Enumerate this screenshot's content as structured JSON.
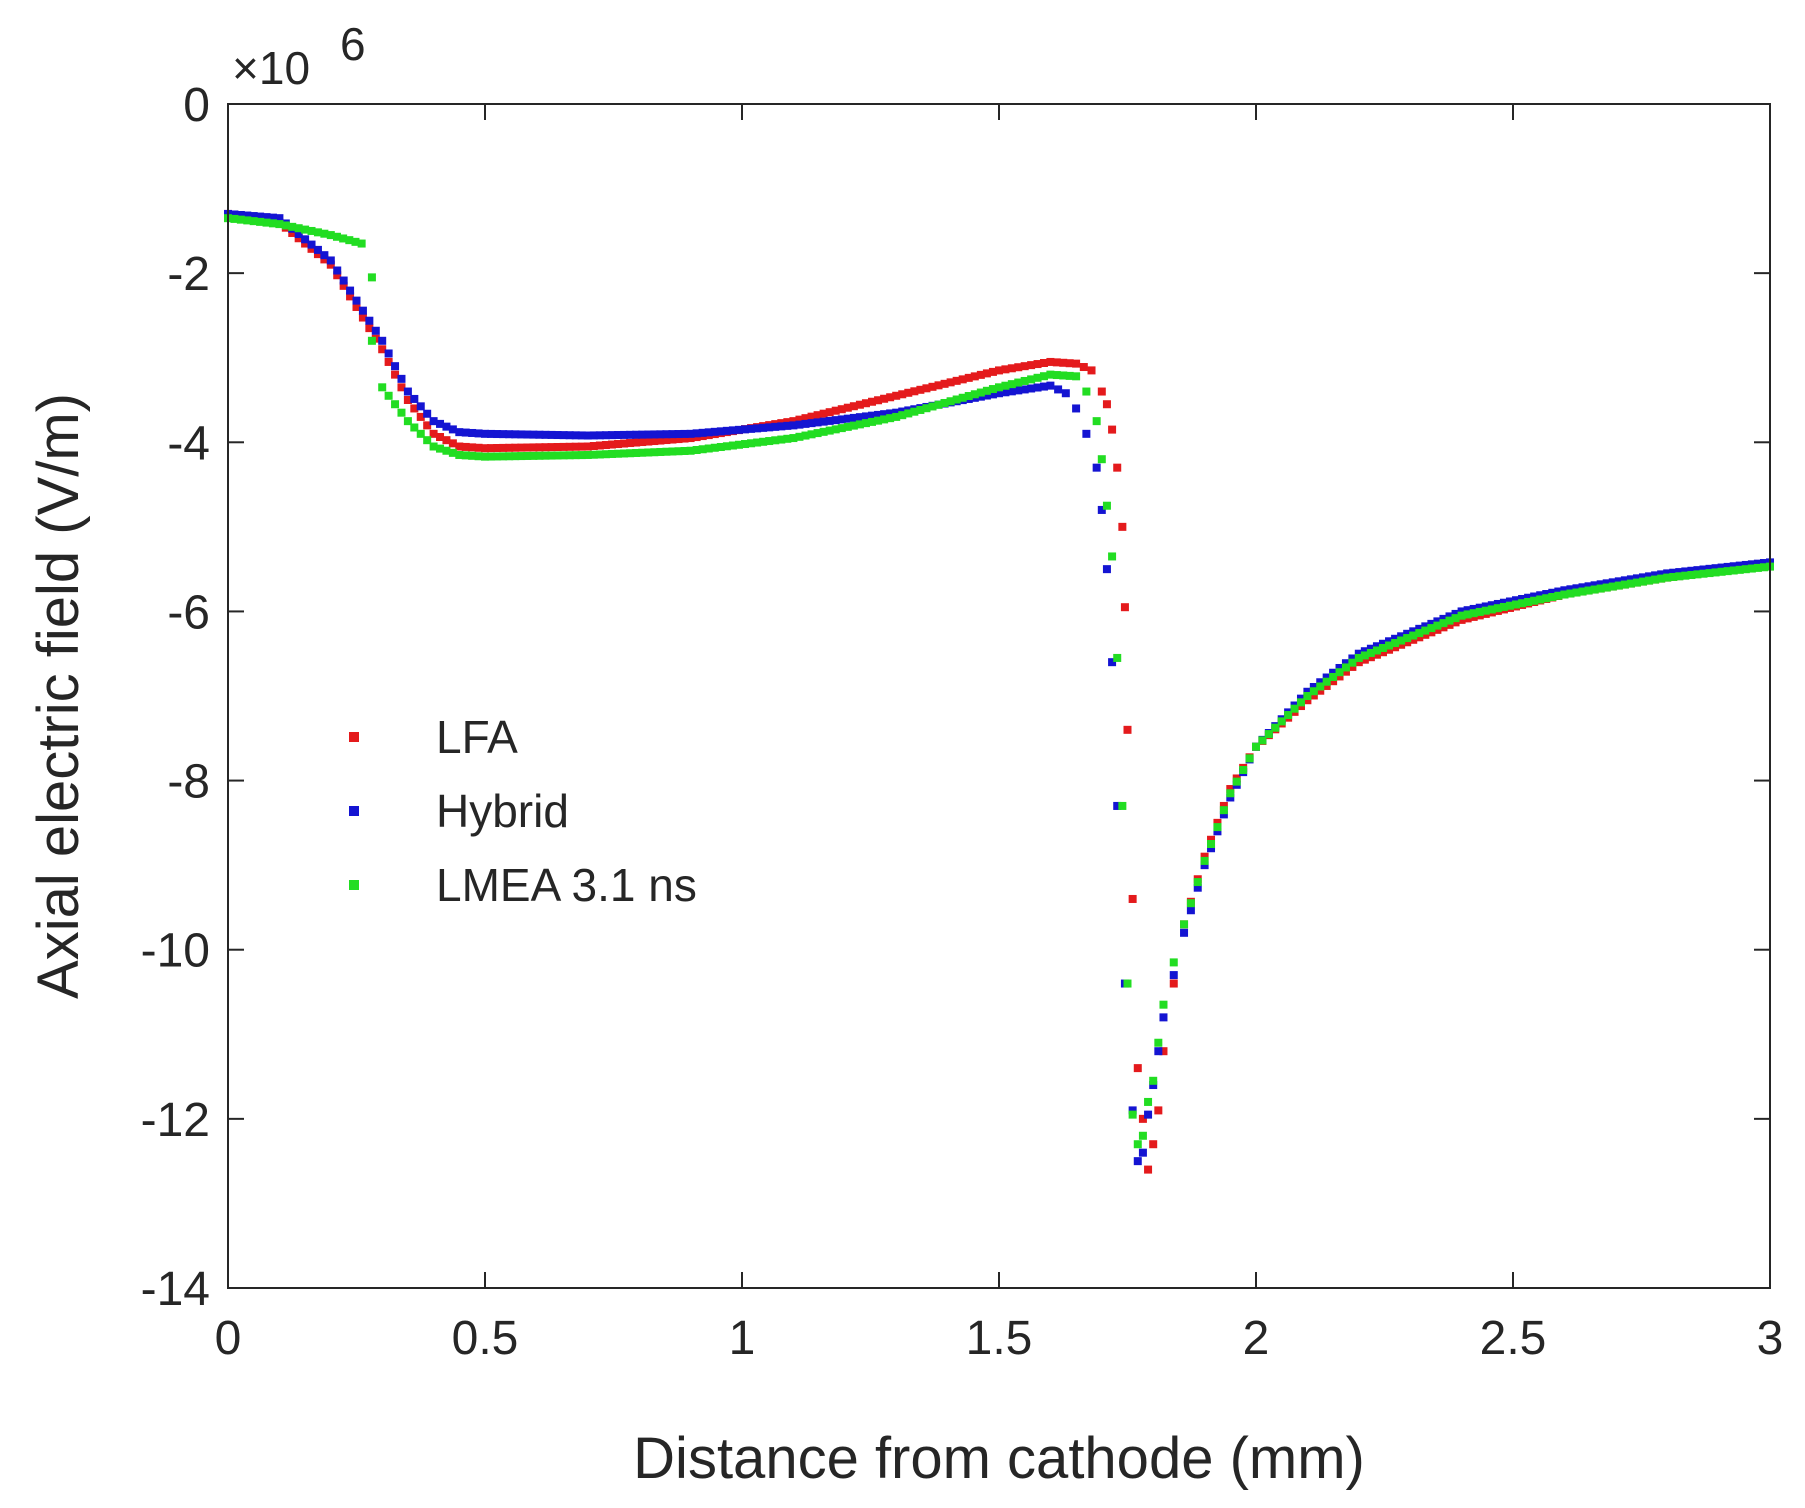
{
  "chart_data": {
    "type": "scatter",
    "title": "",
    "xlabel": "Distance from cathode (mm)",
    "ylabel": "Axial electric field (V/m)",
    "y_multiplier": "×10",
    "y_exponent": "6",
    "xlim": [
      0,
      3
    ],
    "ylim": [
      -14,
      0
    ],
    "xticks": [
      "0",
      "0.5",
      "1",
      "1.5",
      "2",
      "2.5",
      "3"
    ],
    "yticks": [
      "0",
      "-2",
      "-4",
      "-6",
      "-8",
      "-10",
      "-12",
      "-14"
    ],
    "legend_position": "center-left",
    "series": [
      {
        "name": "LFA",
        "color": "#e41a1c",
        "points": [
          [
            0,
            -1.3
          ],
          [
            0.1,
            -1.4
          ],
          [
            0.2,
            -1.9
          ],
          [
            0.3,
            -2.9
          ],
          [
            0.35,
            -3.5
          ],
          [
            0.4,
            -3.9
          ],
          [
            0.45,
            -4.05
          ],
          [
            0.5,
            -4.07
          ],
          [
            0.7,
            -4.05
          ],
          [
            0.9,
            -3.95
          ],
          [
            1.1,
            -3.75
          ],
          [
            1.3,
            -3.45
          ],
          [
            1.5,
            -3.15
          ],
          [
            1.6,
            -3.05
          ],
          [
            1.65,
            -3.07
          ],
          [
            1.68,
            -3.15
          ],
          [
            1.7,
            -3.4
          ],
          [
            1.71,
            -3.55
          ],
          [
            1.72,
            -3.85
          ],
          [
            1.73,
            -4.3
          ],
          [
            1.74,
            -5.0
          ],
          [
            1.745,
            -5.95
          ],
          [
            1.75,
            -7.4
          ],
          [
            1.76,
            -9.4
          ],
          [
            1.77,
            -11.4
          ],
          [
            1.78,
            -12.0
          ],
          [
            1.79,
            -12.6
          ],
          [
            1.8,
            -12.3
          ],
          [
            1.81,
            -11.9
          ],
          [
            1.82,
            -11.2
          ],
          [
            1.84,
            -10.4
          ],
          [
            1.86,
            -9.7
          ],
          [
            1.9,
            -8.9
          ],
          [
            1.95,
            -8.1
          ],
          [
            2.0,
            -7.6
          ],
          [
            2.1,
            -7.05
          ],
          [
            2.2,
            -6.6
          ],
          [
            2.4,
            -6.1
          ],
          [
            2.6,
            -5.8
          ],
          [
            2.8,
            -5.6
          ],
          [
            3.0,
            -5.45
          ]
        ]
      },
      {
        "name": "Hybrid",
        "color": "#1414d2",
        "points": [
          [
            0,
            -1.3
          ],
          [
            0.1,
            -1.35
          ],
          [
            0.2,
            -1.85
          ],
          [
            0.3,
            -2.8
          ],
          [
            0.35,
            -3.4
          ],
          [
            0.4,
            -3.75
          ],
          [
            0.45,
            -3.88
          ],
          [
            0.5,
            -3.9
          ],
          [
            0.7,
            -3.92
          ],
          [
            0.9,
            -3.9
          ],
          [
            1.1,
            -3.8
          ],
          [
            1.3,
            -3.65
          ],
          [
            1.5,
            -3.42
          ],
          [
            1.6,
            -3.33
          ],
          [
            1.63,
            -3.42
          ],
          [
            1.65,
            -3.6
          ],
          [
            1.67,
            -3.9
          ],
          [
            1.69,
            -4.3
          ],
          [
            1.7,
            -4.8
          ],
          [
            1.71,
            -5.5
          ],
          [
            1.72,
            -6.6
          ],
          [
            1.73,
            -8.3
          ],
          [
            1.745,
            -10.4
          ],
          [
            1.76,
            -11.9
          ],
          [
            1.77,
            -12.5
          ],
          [
            1.78,
            -12.4
          ],
          [
            1.79,
            -11.95
          ],
          [
            1.8,
            -11.6
          ],
          [
            1.81,
            -11.2
          ],
          [
            1.82,
            -10.8
          ],
          [
            1.84,
            -10.3
          ],
          [
            1.86,
            -9.8
          ],
          [
            1.9,
            -9.0
          ],
          [
            1.95,
            -8.2
          ],
          [
            2.0,
            -7.6
          ],
          [
            2.1,
            -6.95
          ],
          [
            2.2,
            -6.5
          ],
          [
            2.4,
            -6.0
          ],
          [
            2.6,
            -5.75
          ],
          [
            2.8,
            -5.55
          ],
          [
            3.0,
            -5.42
          ]
        ]
      },
      {
        "name": "LMEA 3.1 ns",
        "color": "#22dd22",
        "points": [
          [
            0,
            -1.35
          ],
          [
            0.1,
            -1.42
          ],
          [
            0.2,
            -1.55
          ],
          [
            0.26,
            -1.65
          ],
          [
            0.28,
            -2.05
          ],
          [
            0.28,
            -2.8
          ],
          [
            0.3,
            -3.35
          ],
          [
            0.35,
            -3.75
          ],
          [
            0.4,
            -4.05
          ],
          [
            0.45,
            -4.15
          ],
          [
            0.5,
            -4.17
          ],
          [
            0.7,
            -4.15
          ],
          [
            0.9,
            -4.1
          ],
          [
            1.1,
            -3.95
          ],
          [
            1.3,
            -3.7
          ],
          [
            1.5,
            -3.35
          ],
          [
            1.6,
            -3.2
          ],
          [
            1.65,
            -3.22
          ],
          [
            1.67,
            -3.4
          ],
          [
            1.69,
            -3.75
          ],
          [
            1.7,
            -4.2
          ],
          [
            1.71,
            -4.75
          ],
          [
            1.72,
            -5.35
          ],
          [
            1.73,
            -6.55
          ],
          [
            1.74,
            -8.3
          ],
          [
            1.75,
            -10.4
          ],
          [
            1.76,
            -11.95
          ],
          [
            1.77,
            -12.3
          ],
          [
            1.78,
            -12.2
          ],
          [
            1.79,
            -11.8
          ],
          [
            1.8,
            -11.55
          ],
          [
            1.81,
            -11.1
          ],
          [
            1.82,
            -10.65
          ],
          [
            1.84,
            -10.15
          ],
          [
            1.86,
            -9.7
          ],
          [
            1.9,
            -8.95
          ],
          [
            1.95,
            -8.15
          ],
          [
            2.0,
            -7.6
          ],
          [
            2.1,
            -7.0
          ],
          [
            2.2,
            -6.55
          ],
          [
            2.4,
            -6.05
          ],
          [
            2.6,
            -5.8
          ],
          [
            2.8,
            -5.6
          ],
          [
            3.0,
            -5.47
          ]
        ]
      }
    ]
  }
}
